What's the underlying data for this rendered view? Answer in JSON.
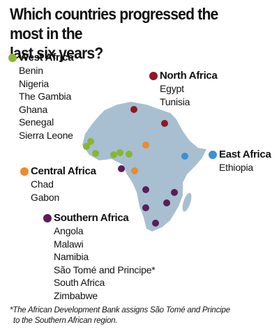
{
  "title_line1": "Which countries progressed the most in the",
  "title_line2": "last six years?",
  "colors": {
    "west": "#8ab531",
    "north": "#8b1a22",
    "east": "#3a8fd6",
    "central": "#ec8a2d",
    "southern": "#5a1d57",
    "land": "#a7bfd1"
  },
  "regions": {
    "west": {
      "name": "West Africa",
      "countries": [
        "Benin",
        "Nigeria",
        "The Gambia",
        "Ghana",
        "Senegal",
        "Sierra Leone"
      ]
    },
    "north": {
      "name": "North Africa",
      "countries": [
        "Egypt",
        "Tunisia"
      ]
    },
    "east": {
      "name": "East Africa",
      "countries": [
        "Ethiopia"
      ]
    },
    "central": {
      "name": "Central Africa",
      "countries": [
        "Chad",
        "Gabon"
      ]
    },
    "southern": {
      "name": "Southern Africa",
      "countries": [
        "Angola",
        "Malawi",
        "Namibia",
        "São Tomé and Principe*",
        "South Africa",
        "Zimbabwe"
      ]
    }
  },
  "footnote_line1": "*The African Development Bank assigns São Tomé and Principe",
  "footnote_line2": "to the Southern African region."
}
